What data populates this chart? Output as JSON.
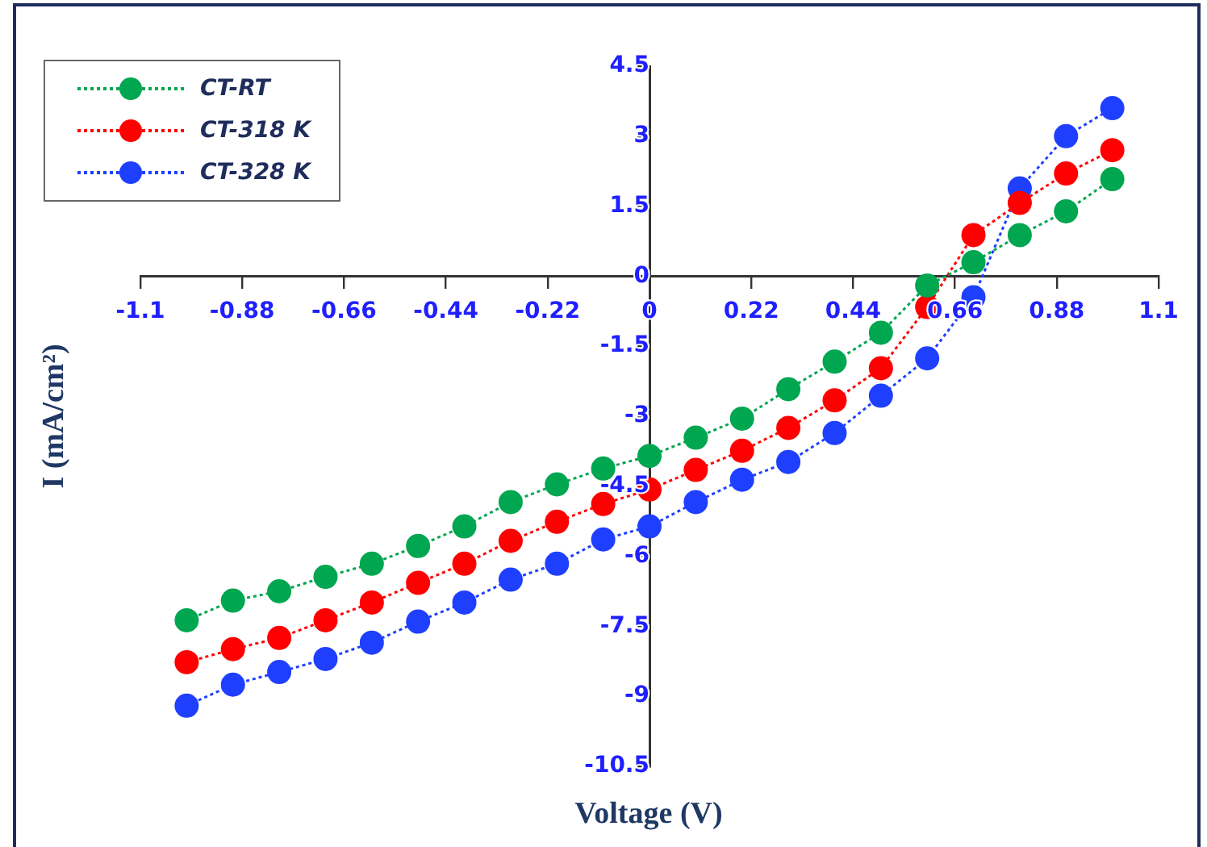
{
  "chart_data": {
    "type": "line",
    "xlabel": "Voltage (V)",
    "ylabel": "I (mA/cm²)",
    "x": [
      -1.0,
      -0.9,
      -0.8,
      -0.7,
      -0.6,
      -0.5,
      -0.4,
      -0.3,
      -0.2,
      -0.1,
      0,
      0.1,
      0.2,
      0.3,
      0.4,
      0.5,
      0.6,
      0.7,
      0.8,
      0.9,
      1.0
    ],
    "series": [
      {
        "name": "CT-RT",
        "color": "#00a650",
        "values": [
          -7.37,
          -6.95,
          -6.75,
          -6.44,
          -6.16,
          -5.78,
          -5.36,
          -4.84,
          -4.46,
          -4.12,
          -3.85,
          -3.46,
          -3.05,
          -2.42,
          -1.83,
          -1.21,
          -0.2,
          0.3,
          0.88,
          1.39,
          2.08
        ]
      },
      {
        "name": "CT-318 K",
        "color": "#ff0000",
        "values": [
          -8.27,
          -7.99,
          -7.75,
          -7.37,
          -6.99,
          -6.57,
          -6.16,
          -5.67,
          -5.26,
          -4.88,
          -4.57,
          -4.15,
          -3.74,
          -3.25,
          -2.66,
          -1.97,
          -0.66,
          0.88,
          1.57,
          2.2,
          2.7
        ]
      },
      {
        "name": "CT-328 K",
        "color": "#1f3fff",
        "values": [
          -9.2,
          -8.75,
          -8.48,
          -8.2,
          -7.85,
          -7.4,
          -6.99,
          -6.5,
          -6.16,
          -5.64,
          -5.36,
          -4.84,
          -4.36,
          -3.98,
          -3.36,
          -2.56,
          -1.76,
          -0.45,
          1.88,
          3.0,
          3.6
        ]
      }
    ],
    "xlim": [
      -1.1,
      1.1
    ],
    "xticks": [
      -1.1,
      -0.88,
      -0.66,
      -0.44,
      -0.22,
      0,
      0.22,
      0.44,
      0.66,
      0.88,
      1.1
    ],
    "ylim": [
      -10.5,
      4.5
    ],
    "yticks": [
      -10.5,
      -9,
      -7.5,
      -6,
      -4.5,
      -3,
      -1.5,
      0,
      1.5,
      3,
      4.5
    ],
    "grid": false,
    "legend": "top left",
    "marker": "circle",
    "line_style": "dotted"
  }
}
